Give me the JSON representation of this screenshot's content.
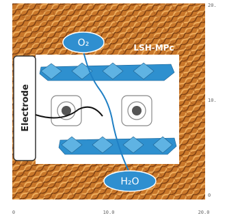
{
  "figure": {
    "o2_label": "O₂",
    "material_label": "LSH-MPc",
    "electrode_label": "Electrode",
    "h2o_label": "H₂O"
  },
  "axes": {
    "right_ticks": [
      "20.",
      "10.",
      "0"
    ],
    "bottom_ticks": [
      "0",
      "10.0",
      "20.0"
    ]
  }
}
